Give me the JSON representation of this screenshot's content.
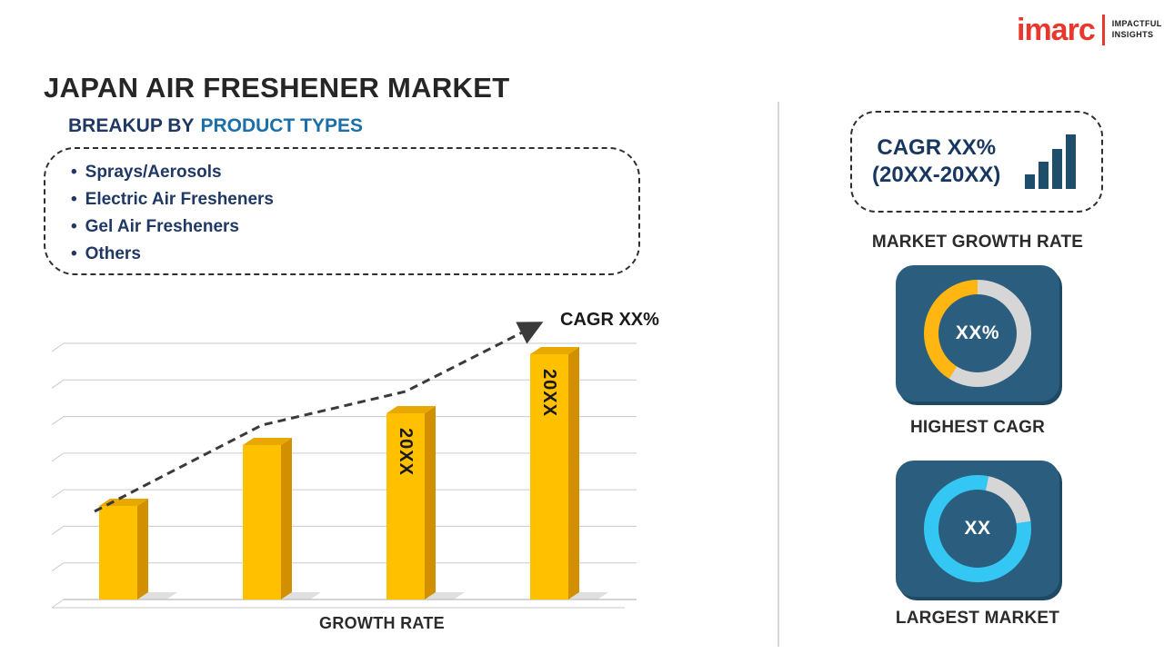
{
  "page_title": "JAPAN AIR FRESHENER MARKET",
  "logo": {
    "brand": "imarc",
    "tagline": [
      "IMPACTFUL",
      "INSIGHTS"
    ],
    "brand_color": "#E8372C"
  },
  "breakup": {
    "heading_prefix": "BREAKUP BY",
    "heading_highlight": "PRODUCT TYPES",
    "items": [
      "Sprays/Aerosols",
      "Electric Air Fresheners",
      "Gel Air Fresheners",
      "Others"
    ]
  },
  "chart_data": {
    "type": "bar",
    "categories": [
      "",
      "",
      "20XX",
      "20XX"
    ],
    "values": [
      38,
      63,
      76,
      100
    ],
    "bar_labels": [
      "",
      "",
      "20XX",
      "20XX"
    ],
    "ylim": [
      0,
      100
    ],
    "xlabel": "GROWTH RATE",
    "ylabel": "",
    "grid": true,
    "legend": "none",
    "trend_label": "CAGR XX%",
    "trend_style": "dashed-arrow",
    "bar_color": "#FFC000",
    "bar_side_color": "#D29000",
    "bar_top_color": "#E8A800",
    "bar_label_color": "#1a1a1a",
    "gridline_color": "#CACACA",
    "trend_color": "#3A3A3A"
  },
  "right_panel": {
    "cagr_card": {
      "line1": "CAGR XX%",
      "line2": "(20XX-20XX)"
    },
    "growth_rate_label": "MARKET GROWTH RATE",
    "highest_cagr": {
      "value": "XX%",
      "label": "HIGHEST CAGR",
      "accent": "#FFB612",
      "segments": [
        {
          "color": "#D6D6D6",
          "from": 0,
          "to": 212
        },
        {
          "color": "#FFB612",
          "from": 212,
          "to": 360
        }
      ]
    },
    "largest_market": {
      "value": "XX",
      "label": "LARGEST MARKET",
      "accent": "#35C7F4",
      "segments": [
        {
          "color": "#35C7F4",
          "from": 0,
          "to": 12
        },
        {
          "color": "#D6D6D6",
          "from": 12,
          "to": 82
        },
        {
          "color": "#35C7F4",
          "from": 82,
          "to": 360
        }
      ]
    }
  },
  "colors": {
    "navy_text": "#1F3864",
    "teal_text": "#1B6FA8",
    "card_bg": "#2B5E7E",
    "icon_navy": "#1F4E6B",
    "divider": "#D8D8D8"
  }
}
